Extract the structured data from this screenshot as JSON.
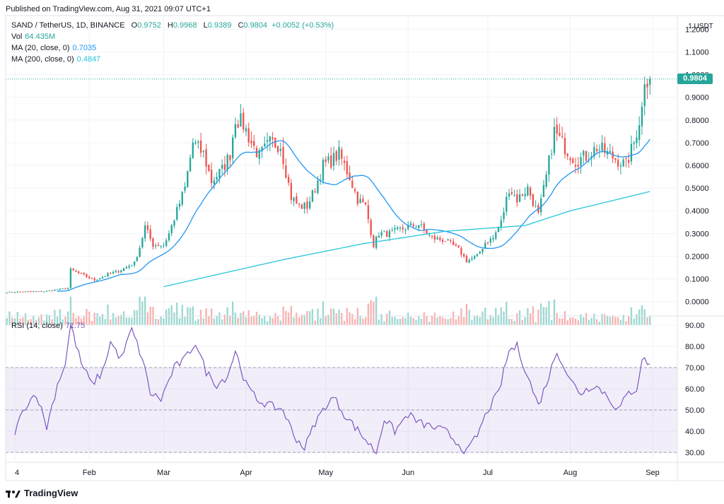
{
  "published": "Published on TradingView.com, Aug 31, 2021 09:07 UTC+1",
  "legend": {
    "symbol": "SAND / TetherUS, 1D, BINANCE",
    "o_key": "O",
    "o": "0.9752",
    "h_key": "H",
    "h": "0.9968",
    "l_key": "L",
    "l": "0.9389",
    "c_key": "C",
    "c": "0.9804",
    "change": "+0.0052 (+0.53%)",
    "vol_label": "Vol",
    "vol": "64.435M",
    "ma20_label": "MA (20, close, 0)",
    "ma20": "0.7035",
    "ma200_label": "MA (200, close, 0)",
    "ma200": "0.4847"
  },
  "unit": "1 USDT",
  "last_price": "0.9804",
  "rsi": {
    "label": "RSI (14, close)",
    "value": "71.75"
  },
  "brand": "TradingView",
  "colors": {
    "up": "#26a69a",
    "down": "#ef5350",
    "ma20": "#2196f3",
    "ma200": "#26c6da",
    "rsi": "#7e57c2"
  },
  "chart_data": [
    {
      "type": "candlestick",
      "price_axis": {
        "ticks": [
          "0.0000",
          "0.1000",
          "0.2000",
          "0.3000",
          "0.4000",
          "0.5000",
          "0.6000",
          "0.7000",
          "0.8000",
          "0.9000",
          "1.0000",
          "1.1000",
          "1.2000"
        ],
        "ylim": [
          -0.06,
          1.26
        ]
      },
      "x_axis": {
        "ticks": [
          "4",
          "Feb",
          "Mar",
          "Apr",
          "May",
          "Jun",
          "Jul",
          "Aug",
          "Sep"
        ],
        "xlim": [
          "2021-01-04",
          "2021-09-01"
        ]
      },
      "close_keypoints": [
        [
          "2021-01-01",
          0.042
        ],
        [
          "2021-01-15",
          0.045
        ],
        [
          "2021-01-24",
          0.06
        ],
        [
          "2021-01-25",
          0.14
        ],
        [
          "2021-01-29",
          0.12
        ],
        [
          "2021-02-03",
          0.095
        ],
        [
          "2021-02-08",
          0.12
        ],
        [
          "2021-02-12",
          0.135
        ],
        [
          "2021-02-18",
          0.17
        ],
        [
          "2021-02-20",
          0.24
        ],
        [
          "2021-02-22",
          0.33
        ],
        [
          "2021-02-25",
          0.25
        ],
        [
          "2021-03-01",
          0.25
        ],
        [
          "2021-03-03",
          0.3
        ],
        [
          "2021-03-06",
          0.4
        ],
        [
          "2021-03-09",
          0.5
        ],
        [
          "2021-03-12",
          0.7
        ],
        [
          "2021-03-16",
          0.65
        ],
        [
          "2021-03-19",
          0.53
        ],
        [
          "2021-03-23",
          0.58
        ],
        [
          "2021-03-26",
          0.65
        ],
        [
          "2021-03-28",
          0.81
        ],
        [
          "2021-03-31",
          0.78
        ],
        [
          "2021-04-03",
          0.7
        ],
        [
          "2021-04-06",
          0.64
        ],
        [
          "2021-04-10",
          0.7
        ],
        [
          "2021-04-14",
          0.69
        ],
        [
          "2021-04-18",
          0.46
        ],
        [
          "2021-04-21",
          0.42
        ],
        [
          "2021-04-24",
          0.42
        ],
        [
          "2021-04-27",
          0.5
        ],
        [
          "2021-04-30",
          0.6
        ],
        [
          "2021-05-03",
          0.62
        ],
        [
          "2021-05-06",
          0.65
        ],
        [
          "2021-05-10",
          0.55
        ],
        [
          "2021-05-13",
          0.45
        ],
        [
          "2021-05-16",
          0.42
        ],
        [
          "2021-05-19",
          0.25
        ],
        [
          "2021-05-21",
          0.3
        ],
        [
          "2021-05-25",
          0.3
        ],
        [
          "2021-06-01",
          0.33
        ],
        [
          "2021-06-05",
          0.34
        ],
        [
          "2021-06-10",
          0.28
        ],
        [
          "2021-06-15",
          0.27
        ],
        [
          "2021-06-20",
          0.23
        ],
        [
          "2021-06-23",
          0.18
        ],
        [
          "2021-06-27",
          0.2
        ],
        [
          "2021-06-30",
          0.26
        ],
        [
          "2021-07-03",
          0.28
        ],
        [
          "2021-07-06",
          0.35
        ],
        [
          "2021-07-09",
          0.5
        ],
        [
          "2021-07-12",
          0.45
        ],
        [
          "2021-07-16",
          0.5
        ],
        [
          "2021-07-20",
          0.38
        ],
        [
          "2021-07-23",
          0.55
        ],
        [
          "2021-07-26",
          0.75
        ],
        [
          "2021-07-30",
          0.68
        ],
        [
          "2021-08-03",
          0.62
        ],
        [
          "2021-08-07",
          0.64
        ],
        [
          "2021-08-11",
          0.68
        ],
        [
          "2021-08-14",
          0.66
        ],
        [
          "2021-08-18",
          0.63
        ],
        [
          "2021-08-22",
          0.6
        ],
        [
          "2021-08-25",
          0.7
        ],
        [
          "2021-08-28",
          0.85
        ],
        [
          "2021-08-29",
          0.99
        ],
        [
          "2021-08-31",
          0.98
        ]
      ],
      "ma200_series": [
        [
          "2021-03-01",
          0.066
        ],
        [
          "2021-04-15",
          0.185
        ],
        [
          "2021-05-15",
          0.255
        ],
        [
          "2021-06-15",
          0.31
        ],
        [
          "2021-07-15",
          0.335
        ],
        [
          "2021-08-01",
          0.4
        ],
        [
          "2021-08-31",
          0.485
        ]
      ],
      "series": [
        {
          "name": "MA (20, close, 0)",
          "last": 0.7035
        },
        {
          "name": "MA (200, close, 0)",
          "last": 0.4847
        },
        {
          "name": "Vol",
          "last": "64.435M"
        }
      ]
    },
    {
      "type": "line",
      "name": "RSI (14, close)",
      "y_axis": {
        "ticks": [
          "30.00",
          "40.00",
          "50.00",
          "60.00",
          "70.00",
          "80.00",
          "90.00"
        ],
        "ylim": [
          26,
          94
        ]
      },
      "bands": [
        30,
        50,
        70
      ],
      "keypoints": [
        [
          "2021-01-04",
          40
        ],
        [
          "2021-01-08",
          52
        ],
        [
          "2021-01-12",
          58
        ],
        [
          "2021-01-16",
          42
        ],
        [
          "2021-01-20",
          62
        ],
        [
          "2021-01-23",
          72
        ],
        [
          "2021-01-25",
          90
        ],
        [
          "2021-01-29",
          72
        ],
        [
          "2021-02-02",
          62
        ],
        [
          "2021-02-06",
          68
        ],
        [
          "2021-02-09",
          82
        ],
        [
          "2021-02-13",
          74
        ],
        [
          "2021-02-17",
          88
        ],
        [
          "2021-02-21",
          74
        ],
        [
          "2021-02-24",
          58
        ],
        [
          "2021-02-28",
          55
        ],
        [
          "2021-03-05",
          70
        ],
        [
          "2021-03-09",
          74
        ],
        [
          "2021-03-13",
          82
        ],
        [
          "2021-03-17",
          68
        ],
        [
          "2021-03-21",
          62
        ],
        [
          "2021-03-25",
          66
        ],
        [
          "2021-03-28",
          78
        ],
        [
          "2021-04-01",
          62
        ],
        [
          "2021-04-05",
          55
        ],
        [
          "2021-04-10",
          52
        ],
        [
          "2021-04-15",
          50
        ],
        [
          "2021-04-19",
          38
        ],
        [
          "2021-04-23",
          32
        ],
        [
          "2021-04-27",
          44
        ],
        [
          "2021-05-01",
          52
        ],
        [
          "2021-05-04",
          56
        ],
        [
          "2021-05-08",
          48
        ],
        [
          "2021-05-12",
          42
        ],
        [
          "2021-05-16",
          36
        ],
        [
          "2021-05-20",
          30
        ],
        [
          "2021-05-23",
          46
        ],
        [
          "2021-05-27",
          40
        ],
        [
          "2021-06-01",
          48
        ],
        [
          "2021-06-05",
          44
        ],
        [
          "2021-06-10",
          42
        ],
        [
          "2021-06-15",
          40
        ],
        [
          "2021-06-20",
          34
        ],
        [
          "2021-06-23",
          30
        ],
        [
          "2021-06-27",
          38
        ],
        [
          "2021-07-01",
          50
        ],
        [
          "2021-07-05",
          58
        ],
        [
          "2021-07-09",
          78
        ],
        [
          "2021-07-12",
          80
        ],
        [
          "2021-07-16",
          66
        ],
        [
          "2021-07-20",
          52
        ],
        [
          "2021-07-24",
          66
        ],
        [
          "2021-07-27",
          78
        ],
        [
          "2021-08-01",
          64
        ],
        [
          "2021-08-05",
          58
        ],
        [
          "2021-08-10",
          62
        ],
        [
          "2021-08-14",
          58
        ],
        [
          "2021-08-19",
          50
        ],
        [
          "2021-08-23",
          58
        ],
        [
          "2021-08-26",
          60
        ],
        [
          "2021-08-28",
          74
        ],
        [
          "2021-08-31",
          72
        ]
      ],
      "last": 71.75
    }
  ]
}
